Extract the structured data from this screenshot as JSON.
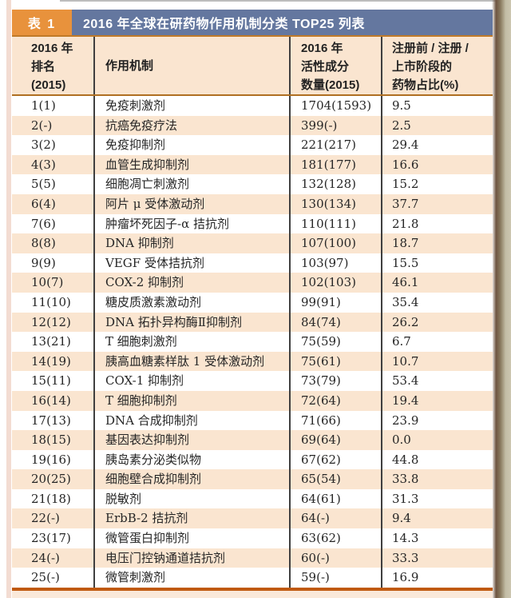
{
  "colors": {
    "badge_orange": "#e8923c",
    "title_blue": "#64779f",
    "stripe_peach": "#fae5d0",
    "header_border_orange": "#c07a28",
    "bottom_rule_orange": "#c05a10"
  },
  "header": {
    "badge": "表 1",
    "title": "2016 年全球在研药物作用机制分类 TOP25 列表"
  },
  "table": {
    "columns": [
      {
        "name": "rank",
        "lines": [
          "2016 年",
          "排名",
          "(2015)"
        ]
      },
      {
        "name": "mechanism",
        "lines": [
          "作用机制"
        ]
      },
      {
        "name": "count",
        "lines": [
          "2016 年",
          "活性成分",
          "数量(2015)"
        ]
      },
      {
        "name": "share",
        "lines": [
          "注册前 / 注册 /",
          "上市阶段的",
          "药物占比(%)"
        ]
      }
    ],
    "rows": [
      {
        "rank": "1(1)",
        "mechanism": "免疫刺激剂",
        "count": "1704(1593)",
        "share": "9.5"
      },
      {
        "rank": "2(-)",
        "mechanism": "抗癌免疫疗法",
        "count": "399(-)",
        "share": "2.5"
      },
      {
        "rank": "3(2)",
        "mechanism": "免疫抑制剂",
        "count": "221(217)",
        "share": "29.4"
      },
      {
        "rank": "4(3)",
        "mechanism": "血管生成抑制剂",
        "count": "181(177)",
        "share": "16.6"
      },
      {
        "rank": "5(5)",
        "mechanism": "细胞凋亡刺激剂",
        "count": "132(128)",
        "share": "15.2"
      },
      {
        "rank": "6(4)",
        "mechanism": "阿片 μ 受体激动剂",
        "count": "130(134)",
        "share": "37.7"
      },
      {
        "rank": "7(6)",
        "mechanism": "肿瘤坏死因子-α 拮抗剂",
        "count": "110(111)",
        "share": "21.8"
      },
      {
        "rank": "8(8)",
        "mechanism": "DNA 抑制剂",
        "count": "107(100)",
        "share": "18.7"
      },
      {
        "rank": "9(9)",
        "mechanism": "VEGF 受体拮抗剂",
        "count": "103(97)",
        "share": "15.5"
      },
      {
        "rank": "10(7)",
        "mechanism": "COX-2 抑制剂",
        "count": "102(103)",
        "share": "46.1"
      },
      {
        "rank": "11(10)",
        "mechanism": "糖皮质激素激动剂",
        "count": "99(91)",
        "share": "35.4"
      },
      {
        "rank": "12(12)",
        "mechanism": "DNA 拓扑异构酶Ⅱ抑制剂",
        "count": "84(74)",
        "share": "26.2"
      },
      {
        "rank": "13(21)",
        "mechanism": "T 细胞刺激剂",
        "count": "75(59)",
        "share": "6.7"
      },
      {
        "rank": "14(19)",
        "mechanism": "胰高血糖素样肽 1 受体激动剂",
        "count": "75(61)",
        "share": "10.7"
      },
      {
        "rank": "15(11)",
        "mechanism": "COX-1 抑制剂",
        "count": "73(79)",
        "share": "53.4"
      },
      {
        "rank": "16(14)",
        "mechanism": "T 细胞抑制剂",
        "count": "72(64)",
        "share": "19.4"
      },
      {
        "rank": "17(13)",
        "mechanism": "DNA 合成抑制剂",
        "count": "71(66)",
        "share": "23.9"
      },
      {
        "rank": "18(15)",
        "mechanism": "基因表达抑制剂",
        "count": "69(64)",
        "share": "0.0"
      },
      {
        "rank": "19(16)",
        "mechanism": "胰岛素分泌类似物",
        "count": "67(62)",
        "share": "44.8"
      },
      {
        "rank": "20(25)",
        "mechanism": "细胞壁合成抑制剂",
        "count": "65(54)",
        "share": "33.8"
      },
      {
        "rank": "21(18)",
        "mechanism": "脱敏剂",
        "count": "64(61)",
        "share": "31.3"
      },
      {
        "rank": "22(-)",
        "mechanism": "ErbB-2 拮抗剂",
        "count": "64(-)",
        "share": "9.4"
      },
      {
        "rank": "23(17)",
        "mechanism": "微管蛋白抑制剂",
        "count": "63(62)",
        "share": "14.3"
      },
      {
        "rank": "24(-)",
        "mechanism": "电压门控钠通道拮抗剂",
        "count": "60(-)",
        "share": "33.3"
      },
      {
        "rank": "25(-)",
        "mechanism": "微管刺激剂",
        "count": "59(-)",
        "share": "16.9"
      }
    ]
  }
}
